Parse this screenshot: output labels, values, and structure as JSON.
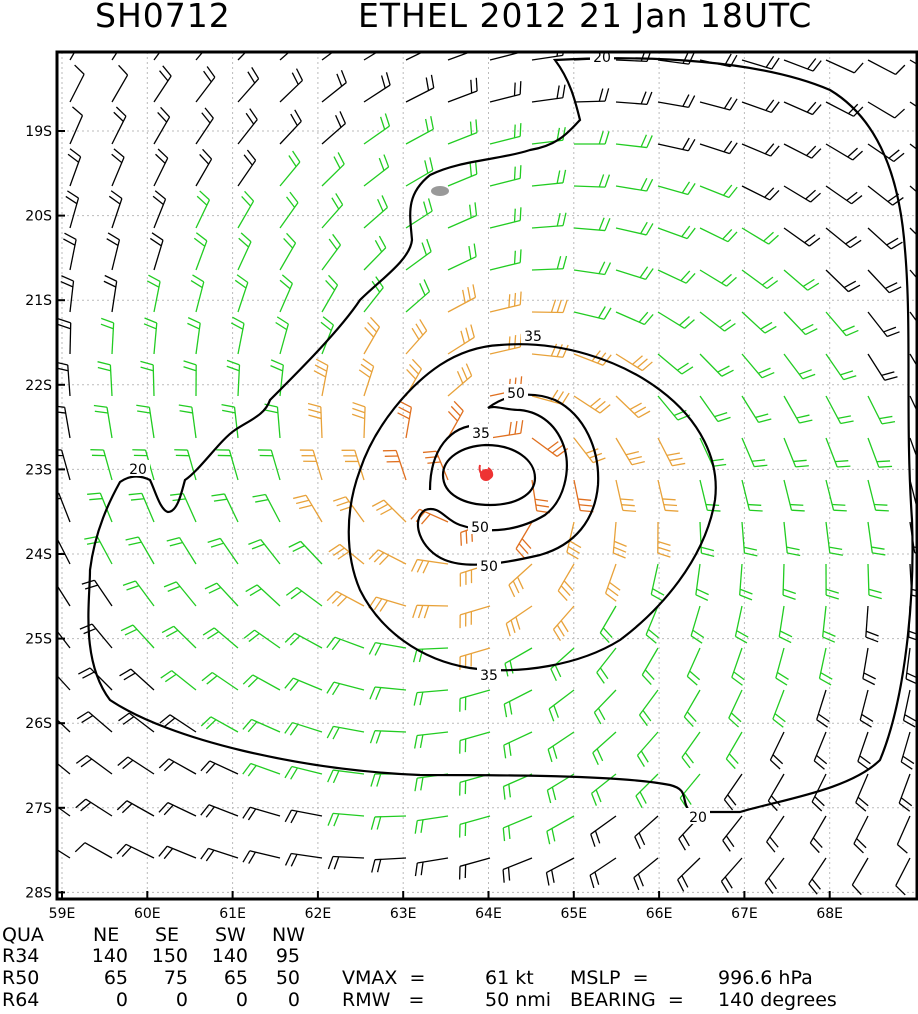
{
  "header": {
    "storm_id": "SH0712",
    "title": "ETHEL 2012 21 Jan 18UTC"
  },
  "map": {
    "lat_labels": [
      "19S",
      "20S",
      "21S",
      "22S",
      "23S",
      "24S",
      "25S",
      "26S",
      "27S",
      "28S"
    ],
    "lon_labels": [
      "59E",
      "60E",
      "61E",
      "62E",
      "63E",
      "64E",
      "65E",
      "66E",
      "67E",
      "68E"
    ],
    "contour_labels": [
      "20",
      "20",
      "20",
      "35",
      "35",
      "35",
      "50",
      "50",
      "50"
    ],
    "center_lon": 64.0,
    "center_lat": -23.1,
    "colors": {
      "below_34kt": "#000000",
      "34_to_50kt": "#22cc22",
      "50_to_64kt": "#e8a23a",
      "64_plus_kt": "#e07020",
      "center_marker": "#ee3333",
      "land": "#999999"
    }
  },
  "wind_radii_table": {
    "headers": [
      "QUA",
      "NE",
      "SE",
      "SW",
      "NW"
    ],
    "rows": [
      {
        "label": "R34",
        "values": [
          "140",
          "150",
          "140",
          "95"
        ]
      },
      {
        "label": "R50",
        "values": [
          "65",
          "75",
          "65",
          "50"
        ]
      },
      {
        "label": "R64",
        "values": [
          "0",
          "0",
          "0",
          "0"
        ]
      }
    ]
  },
  "stats": {
    "vmax_label": "VMAX  =",
    "vmax_value": "61 kt",
    "mslp_label": "MSLP  =",
    "mslp_value": "996.6 hPa",
    "rmw_label": "RMW   =",
    "rmw_value": "50 nmi",
    "bearing_label": "BEARING  =",
    "bearing_value": "140 degrees"
  }
}
